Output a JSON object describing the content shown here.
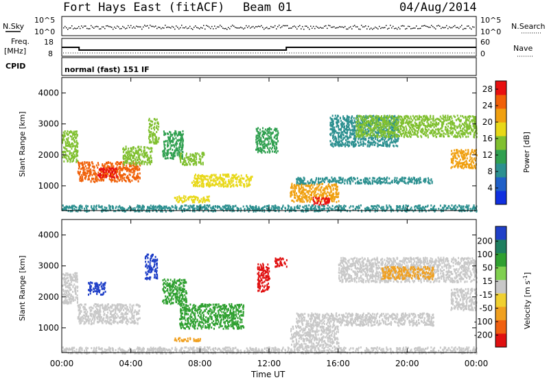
{
  "header": {
    "station": "Fort Hays East (fitACF)",
    "beam": "Beam 01",
    "date": "04/Aug/2014"
  },
  "status_panels": {
    "nsky_label": "N.Sky",
    "nsky_ticks": [
      "10^5",
      "10^0"
    ],
    "nsky_right_ticks": [
      "10^5",
      "10^0"
    ],
    "nsearch_label": "N.Search",
    "freq_label": "Freq.",
    "freq_unit": "[MHz]",
    "freq_ticks": [
      "18",
      "8"
    ],
    "nave_label": "Nave",
    "nave_ticks": [
      "60",
      "0"
    ],
    "cpid_label": "CPID",
    "cpid_text": "normal (fast) 151 IF",
    "freq_trace": {
      "x_hours": [
        0,
        1.0,
        1.0,
        13.0,
        13.0,
        24
      ],
      "mhz": [
        13,
        13,
        11.2,
        11.2,
        13,
        13
      ]
    },
    "nave_trace_level": 8
  },
  "colors": {
    "power_scale": [
      "#1030e0",
      "#2060c8",
      "#2c9090",
      "#30a050",
      "#80c030",
      "#e8d818",
      "#f0a010",
      "#f06008",
      "#e81010"
    ],
    "velocity_scale": [
      "#2040c8",
      "#1f7f60",
      "#2fa030",
      "#80d050",
      "#c8c8c8",
      "#f0d030",
      "#f0a020",
      "#f06010",
      "#e01010"
    ],
    "ground_scatter": "#c8c8c8"
  },
  "chart_data": [
    {
      "type": "heatmap",
      "name": "power",
      "ylabel": "Slant Range [km]",
      "yticks": [
        1000,
        2000,
        3000,
        4000
      ],
      "ylim": [
        200,
        4500
      ],
      "xlim_hours": [
        0,
        24
      ],
      "colorbar_label": "Power [dB]",
      "colorbar_ticks": [
        4,
        8,
        12,
        16,
        20,
        24,
        28
      ],
      "colorbar_range": [
        0,
        30
      ],
      "blobs": [
        {
          "t0": 0.0,
          "t1": 0.9,
          "r0": 1800,
          "r1": 2800,
          "v": 14
        },
        {
          "t0": 0.9,
          "t1": 4.5,
          "r0": 1150,
          "r1": 1800,
          "v": 24
        },
        {
          "t0": 2.0,
          "t1": 3.2,
          "r0": 1300,
          "r1": 1600,
          "v": 28
        },
        {
          "t0": 3.5,
          "t1": 5.2,
          "r0": 1700,
          "r1": 2300,
          "v": 16
        },
        {
          "t0": 5.0,
          "t1": 5.6,
          "r0": 2400,
          "r1": 3200,
          "v": 14
        },
        {
          "t0": 5.8,
          "t1": 7.0,
          "r0": 1900,
          "r1": 2800,
          "v": 10
        },
        {
          "t0": 6.8,
          "t1": 8.2,
          "r0": 1700,
          "r1": 2100,
          "v": 16
        },
        {
          "t0": 7.5,
          "t1": 11.0,
          "r0": 1000,
          "r1": 1400,
          "v": 18
        },
        {
          "t0": 6.5,
          "t1": 8.5,
          "r0": 500,
          "r1": 700,
          "v": 18
        },
        {
          "t0": 11.2,
          "t1": 12.5,
          "r0": 2100,
          "r1": 2900,
          "v": 10
        },
        {
          "t0": 13.2,
          "t1": 16.0,
          "r0": 500,
          "r1": 1100,
          "v": 22
        },
        {
          "t0": 14.5,
          "t1": 15.5,
          "r0": 400,
          "r1": 650,
          "v": 29
        },
        {
          "t0": 13.5,
          "t1": 21.5,
          "r0": 1100,
          "r1": 1300,
          "v": 8
        },
        {
          "t0": 15.5,
          "t1": 19.5,
          "r0": 2300,
          "r1": 3300,
          "v": 8
        },
        {
          "t0": 17.0,
          "t1": 24.0,
          "r0": 2600,
          "r1": 3300,
          "v": 14
        },
        {
          "t0": 22.5,
          "t1": 24.0,
          "r0": 1600,
          "r1": 2200,
          "v": 20
        },
        {
          "t0": 0.0,
          "t1": 24.0,
          "r0": 200,
          "r1": 400,
          "v": 8
        }
      ]
    },
    {
      "type": "heatmap",
      "name": "velocity",
      "ylabel": "Slant Range [km]",
      "yticks": [
        1000,
        2000,
        3000,
        4000
      ],
      "ylim": [
        200,
        4500
      ],
      "xlim_hours": [
        0,
        24
      ],
      "xticks": [
        "00:00",
        "04:00",
        "08:00",
        "12:00",
        "16:00",
        "20:00",
        "00:00"
      ],
      "xlabel": "Time UT",
      "colorbar_label": "Velocity [m s",
      "colorbar_label_sup": "-1",
      "colorbar_label_end": "]",
      "colorbar_ticks": [
        "200",
        "100",
        "50",
        "15",
        "-15",
        "-50",
        "-100",
        "-200"
      ],
      "blobs": [
        {
          "t0": 0.0,
          "t1": 0.9,
          "r0": 1800,
          "r1": 2800,
          "v": 0
        },
        {
          "t0": 0.9,
          "t1": 4.5,
          "r0": 1150,
          "r1": 1800,
          "v": 0
        },
        {
          "t0": 1.5,
          "t1": 2.5,
          "r0": 2100,
          "r1": 2500,
          "v": 150
        },
        {
          "t0": 4.8,
          "t1": 5.5,
          "r0": 2600,
          "r1": 3400,
          "v": 180
        },
        {
          "t0": 5.8,
          "t1": 7.2,
          "r0": 1800,
          "r1": 2600,
          "v": 60
        },
        {
          "t0": 6.8,
          "t1": 10.5,
          "r0": 1000,
          "r1": 1800,
          "v": 40
        },
        {
          "t0": 6.5,
          "t1": 8.0,
          "r0": 600,
          "r1": 700,
          "v": -60
        },
        {
          "t0": 11.3,
          "t1": 12.0,
          "r0": 2200,
          "r1": 3100,
          "v": -200
        },
        {
          "t0": 12.3,
          "t1": 13.0,
          "r0": 3000,
          "r1": 3300,
          "v": -200
        },
        {
          "t0": 13.2,
          "t1": 16.0,
          "r0": 400,
          "r1": 1100,
          "v": 0
        },
        {
          "t0": 13.5,
          "t1": 21.5,
          "r0": 1100,
          "r1": 1500,
          "v": 0
        },
        {
          "t0": 16.0,
          "t1": 24.0,
          "r0": 2500,
          "r1": 3300,
          "v": 0
        },
        {
          "t0": 18.5,
          "t1": 21.5,
          "r0": 2600,
          "r1": 3000,
          "v": -60
        },
        {
          "t0": 22.5,
          "t1": 24.0,
          "r0": 1600,
          "r1": 2300,
          "v": 0
        },
        {
          "t0": 0.0,
          "t1": 24.0,
          "r0": 200,
          "r1": 400,
          "v": 0
        }
      ]
    }
  ]
}
